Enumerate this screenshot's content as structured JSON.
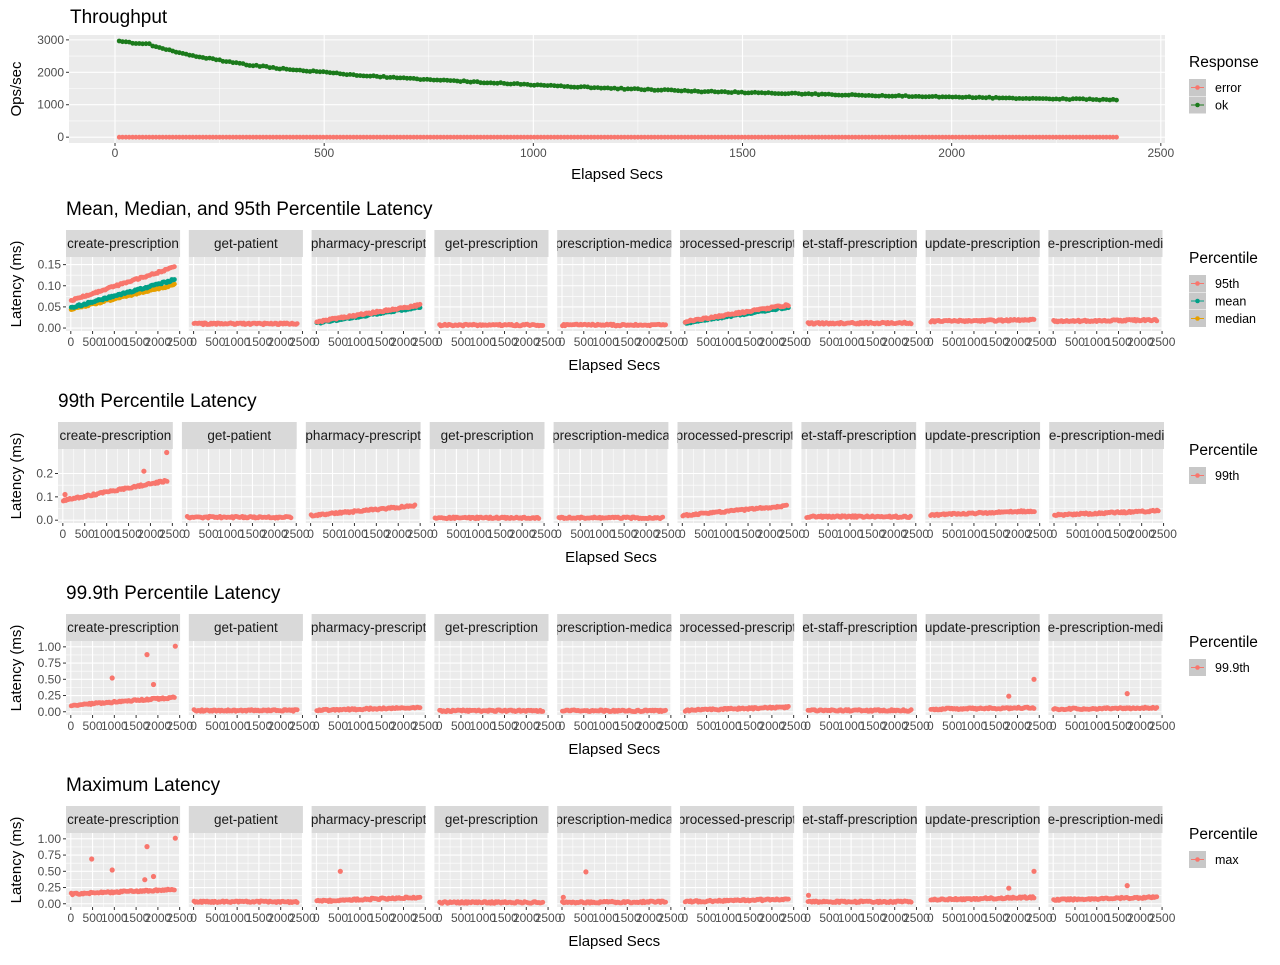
{
  "colors": {
    "panel_bg": "#EBEBEB",
    "grid_major": "#FFFFFF",
    "strip_bg": "#D9D9D9",
    "legend_key_bg": "#C8C8C8",
    "error": "#F8766D",
    "ok": "#1B7A1B",
    "p95": "#F8766D",
    "mean": "#00A087",
    "median": "#E6A000"
  },
  "facets": [
    "create-prescription",
    "get-patient",
    "pharmacy-prescript",
    "get-prescription",
    "prescription-medica",
    "processed-prescript",
    "et-staff-prescription",
    "update-prescription",
    "e-prescription-medi"
  ],
  "chart_data": [
    {
      "id": "throughput",
      "type": "scatter",
      "title": "Throughput",
      "xlabel": "Elapsed Secs",
      "ylabel": "Ops/sec",
      "xlim": [
        -110,
        2510
      ],
      "ylim": [
        -180,
        3150
      ],
      "x_ticks": [
        0,
        500,
        1000,
        1500,
        2000,
        2500
      ],
      "x_tick_labels": [
        "0",
        "500",
        "1000",
        "1500",
        "2000",
        "2500"
      ],
      "y_ticks": [
        0,
        1000,
        2000,
        3000
      ],
      "y_tick_labels": [
        "0",
        "1000",
        "2000",
        "3000"
      ],
      "legend": {
        "title": "Response",
        "position": "right",
        "entries": [
          "error",
          "ok"
        ]
      },
      "series": [
        {
          "name": "error",
          "color": "#F8766D",
          "x": [
            10,
            2400
          ],
          "y": [
            0,
            0
          ]
        },
        {
          "name": "ok",
          "color": "#1B7A1B",
          "x": [
            10,
            30,
            50,
            75,
            100,
            150,
            200,
            300,
            400,
            500,
            600,
            700,
            800,
            900,
            1000,
            1200,
            1400,
            1600,
            1800,
            2000,
            2200,
            2400
          ],
          "y": [
            2960,
            2930,
            2880,
            2900,
            2780,
            2620,
            2480,
            2260,
            2110,
            2000,
            1890,
            1810,
            1740,
            1680,
            1610,
            1500,
            1410,
            1350,
            1290,
            1240,
            1190,
            1150
          ]
        }
      ]
    },
    {
      "id": "percentiles",
      "type": "scatter",
      "title": "Mean, Median, and 95th Percentile Latency",
      "xlabel": "Elapsed Secs",
      "ylabel": "Latency (ms)",
      "xlim": [
        -110,
        2510
      ],
      "ylim": [
        -0.007,
        0.168
      ],
      "x_ticks": [
        0,
        500,
        1000,
        1500,
        2000,
        2500
      ],
      "x_tick_labels": [
        "0",
        "500",
        "1000",
        "1500",
        "2000",
        "2500"
      ],
      "y_ticks": [
        0,
        0.05,
        0.1,
        0.15
      ],
      "y_tick_labels": [
        "0.00",
        "0.05",
        "0.10",
        "0.15"
      ],
      "legend": {
        "title": "Percentile",
        "position": "right",
        "entries": [
          "95th",
          "mean",
          "median"
        ]
      },
      "facet_series": [
        [
          {
            "name": "median",
            "color": "#E6A000",
            "x": [
              10,
              2400
            ],
            "y": [
              0.045,
              0.103
            ]
          },
          {
            "name": "mean",
            "color": "#00A087",
            "x": [
              10,
              2400
            ],
            "y": [
              0.048,
              0.115
            ]
          },
          {
            "name": "95th",
            "color": "#F8766D",
            "x": [
              10,
              2400
            ],
            "y": [
              0.065,
              0.145
            ]
          }
        ],
        [
          {
            "name": "95th",
            "color": "#F8766D",
            "x": [
              10,
              2400
            ],
            "y": [
              0.01,
              0.01
            ]
          }
        ],
        [
          {
            "name": "mean",
            "color": "#00A087",
            "x": [
              10,
              2400
            ],
            "y": [
              0.012,
              0.05
            ]
          },
          {
            "name": "95th",
            "color": "#F8766D",
            "x": [
              10,
              2400
            ],
            "y": [
              0.015,
              0.055
            ]
          }
        ],
        [
          {
            "name": "95th",
            "color": "#F8766D",
            "x": [
              10,
              2400
            ],
            "y": [
              0.007,
              0.007
            ]
          }
        ],
        [
          {
            "name": "95th",
            "color": "#F8766D",
            "x": [
              10,
              2400
            ],
            "y": [
              0.007,
              0.007
            ]
          }
        ],
        [
          {
            "name": "mean",
            "color": "#00A087",
            "x": [
              10,
              2400
            ],
            "y": [
              0.012,
              0.05
            ]
          },
          {
            "name": "95th",
            "color": "#F8766D",
            "x": [
              10,
              2400
            ],
            "y": [
              0.015,
              0.055
            ]
          }
        ],
        [
          {
            "name": "95th",
            "color": "#F8766D",
            "x": [
              10,
              2400
            ],
            "y": [
              0.011,
              0.012
            ]
          }
        ],
        [
          {
            "name": "95th",
            "color": "#F8766D",
            "x": [
              10,
              2400
            ],
            "y": [
              0.016,
              0.019
            ]
          }
        ],
        [
          {
            "name": "95th",
            "color": "#F8766D",
            "x": [
              10,
              2400
            ],
            "y": [
              0.016,
              0.019
            ]
          }
        ]
      ]
    },
    {
      "id": "p99",
      "type": "scatter",
      "title": "99th Percentile Latency",
      "xlabel": "Elapsed Secs",
      "ylabel": "Latency (ms)",
      "xlim": [
        -110,
        2510
      ],
      "ylim": [
        -0.012,
        0.305
      ],
      "x_ticks": [
        0,
        500,
        1000,
        1500,
        2000,
        2500
      ],
      "x_tick_labels": [
        "0",
        "500",
        "1000",
        "1500",
        "2000",
        "2500"
      ],
      "y_ticks": [
        0,
        0.1,
        0.2
      ],
      "y_tick_labels": [
        "0.0",
        "0.1",
        "0.2"
      ],
      "legend": {
        "title": "Percentile",
        "position": "right",
        "entries": [
          "99th"
        ]
      },
      "facet_series": [
        [
          {
            "name": "99th",
            "color": "#F8766D",
            "x": [
              10,
              2400
            ],
            "y": [
              0.085,
              0.17
            ],
            "outliers": [
              [
                50,
                0.11
              ],
              [
                1850,
                0.21
              ],
              [
                2370,
                0.29
              ]
            ]
          }
        ],
        [
          {
            "name": "99th",
            "color": "#F8766D",
            "x": [
              10,
              2400
            ],
            "y": [
              0.013,
              0.012
            ]
          }
        ],
        [
          {
            "name": "99th",
            "color": "#F8766D",
            "x": [
              10,
              2400
            ],
            "y": [
              0.02,
              0.062
            ]
          }
        ],
        [
          {
            "name": "99th",
            "color": "#F8766D",
            "x": [
              10,
              2400
            ],
            "y": [
              0.01,
              0.01
            ]
          }
        ],
        [
          {
            "name": "99th",
            "color": "#F8766D",
            "x": [
              10,
              2400
            ],
            "y": [
              0.01,
              0.01
            ]
          }
        ],
        [
          {
            "name": "99th",
            "color": "#F8766D",
            "x": [
              10,
              2400
            ],
            "y": [
              0.02,
              0.062
            ]
          }
        ],
        [
          {
            "name": "99th",
            "color": "#F8766D",
            "x": [
              10,
              2400
            ],
            "y": [
              0.015,
              0.015
            ]
          }
        ],
        [
          {
            "name": "99th",
            "color": "#F8766D",
            "x": [
              10,
              2400
            ],
            "y": [
              0.022,
              0.04
            ]
          }
        ],
        [
          {
            "name": "99th",
            "color": "#F8766D",
            "x": [
              10,
              2400
            ],
            "y": [
              0.022,
              0.04
            ]
          }
        ]
      ]
    },
    {
      "id": "p999",
      "type": "scatter",
      "title": "99.9th Percentile Latency",
      "xlabel": "Elapsed Secs",
      "ylabel": "Latency (ms)",
      "xlim": [
        -110,
        2510
      ],
      "ylim": [
        -0.05,
        1.09
      ],
      "x_ticks": [
        0,
        500,
        1000,
        1500,
        2000,
        2500
      ],
      "x_tick_labels": [
        "0",
        "500",
        "1000",
        "1500",
        "2000",
        "2500"
      ],
      "y_ticks": [
        0,
        0.25,
        0.5,
        0.75,
        1.0
      ],
      "y_tick_labels": [
        "0.00",
        "0.25",
        "0.50",
        "0.75",
        "1.00"
      ],
      "legend": {
        "title": "Percentile",
        "position": "right",
        "entries": [
          "99.9th"
        ]
      },
      "facet_series": [
        [
          {
            "name": "99.9th",
            "color": "#F8766D",
            "x": [
              10,
              2400
            ],
            "y": [
              0.1,
              0.22
            ],
            "outliers": [
              [
                950,
                0.52
              ],
              [
                1750,
                0.88
              ],
              [
                1900,
                0.42
              ],
              [
                2400,
                1.01
              ]
            ]
          }
        ],
        [
          {
            "name": "99.9th",
            "color": "#F8766D",
            "x": [
              10,
              2400
            ],
            "y": [
              0.02,
              0.02
            ]
          }
        ],
        [
          {
            "name": "99.9th",
            "color": "#F8766D",
            "x": [
              10,
              2400
            ],
            "y": [
              0.02,
              0.07
            ]
          }
        ],
        [
          {
            "name": "99.9th",
            "color": "#F8766D",
            "x": [
              10,
              2400
            ],
            "y": [
              0.015,
              0.015
            ]
          }
        ],
        [
          {
            "name": "99.9th",
            "color": "#F8766D",
            "x": [
              10,
              2400
            ],
            "y": [
              0.015,
              0.015
            ]
          }
        ],
        [
          {
            "name": "99.9th",
            "color": "#F8766D",
            "x": [
              10,
              2400
            ],
            "y": [
              0.02,
              0.07
            ]
          }
        ],
        [
          {
            "name": "99.9th",
            "color": "#F8766D",
            "x": [
              10,
              2400
            ],
            "y": [
              0.02,
              0.02
            ]
          }
        ],
        [
          {
            "name": "99.9th",
            "color": "#F8766D",
            "x": [
              10,
              2400
            ],
            "y": [
              0.04,
              0.06
            ],
            "outliers": [
              [
                1800,
                0.24
              ],
              [
                2380,
                0.5
              ]
            ]
          }
        ],
        [
          {
            "name": "99.9th",
            "color": "#F8766D",
            "x": [
              10,
              2400
            ],
            "y": [
              0.04,
              0.06
            ],
            "outliers": [
              [
                1700,
                0.28
              ]
            ]
          }
        ]
      ]
    },
    {
      "id": "max",
      "type": "scatter",
      "title": "Maximum Latency",
      "xlabel": "Elapsed Secs",
      "ylabel": "Latency (ms)",
      "xlim": [
        -110,
        2510
      ],
      "ylim": [
        -0.05,
        1.09
      ],
      "x_ticks": [
        0,
        500,
        1000,
        1500,
        2000,
        2500
      ],
      "x_tick_labels": [
        "0",
        "500",
        "1000",
        "1500",
        "2000",
        "2500"
      ],
      "y_ticks": [
        0,
        0.25,
        0.5,
        0.75,
        1.0
      ],
      "y_tick_labels": [
        "0.00",
        "0.25",
        "0.50",
        "0.75",
        "1.00"
      ],
      "legend": {
        "title": "Percentile",
        "position": "right",
        "entries": [
          "max"
        ]
      },
      "facet_series": [
        [
          {
            "name": "max",
            "color": "#F8766D",
            "x": [
              10,
              2400
            ],
            "y": [
              0.15,
              0.22
            ],
            "outliers": [
              [
                480,
                0.69
              ],
              [
                950,
                0.52
              ],
              [
                1700,
                0.37
              ],
              [
                1750,
                0.88
              ],
              [
                1900,
                0.42
              ],
              [
                2400,
                1.01
              ]
            ]
          }
        ],
        [
          {
            "name": "max",
            "color": "#F8766D",
            "x": [
              10,
              2400
            ],
            "y": [
              0.03,
              0.03
            ]
          }
        ],
        [
          {
            "name": "max",
            "color": "#F8766D",
            "x": [
              10,
              2400
            ],
            "y": [
              0.04,
              0.1
            ],
            "outliers": [
              [
                550,
                0.5
              ]
            ]
          }
        ],
        [
          {
            "name": "max",
            "color": "#F8766D",
            "x": [
              10,
              2400
            ],
            "y": [
              0.02,
              0.02
            ]
          }
        ],
        [
          {
            "name": "max",
            "color": "#F8766D",
            "x": [
              10,
              2400
            ],
            "y": [
              0.02,
              0.03
            ],
            "outliers": [
              [
                30,
                0.1
              ],
              [
                550,
                0.49
              ]
            ]
          }
        ],
        [
          {
            "name": "max",
            "color": "#F8766D",
            "x": [
              10,
              2400
            ],
            "y": [
              0.03,
              0.07
            ]
          }
        ],
        [
          {
            "name": "max",
            "color": "#F8766D",
            "x": [
              10,
              2400
            ],
            "y": [
              0.03,
              0.03
            ],
            "outliers": [
              [
                20,
                0.13
              ]
            ]
          }
        ],
        [
          {
            "name": "max",
            "color": "#F8766D",
            "x": [
              10,
              2400
            ],
            "y": [
              0.06,
              0.1
            ],
            "outliers": [
              [
                1800,
                0.24
              ],
              [
                2380,
                0.5
              ]
            ]
          }
        ],
        [
          {
            "name": "max",
            "color": "#F8766D",
            "x": [
              10,
              2400
            ],
            "y": [
              0.06,
              0.1
            ],
            "outliers": [
              [
                1700,
                0.28
              ]
            ]
          }
        ]
      ]
    }
  ]
}
